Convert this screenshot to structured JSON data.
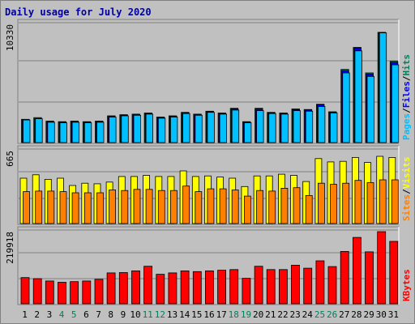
{
  "chart_data": {
    "type": "bar",
    "title": "Daily usage for July 2020",
    "categories": [
      "1",
      "2",
      "3",
      "4",
      "5",
      "6",
      "7",
      "8",
      "9",
      "10",
      "11",
      "12",
      "13",
      "14",
      "15",
      "16",
      "17",
      "18",
      "19",
      "20",
      "21",
      "22",
      "23",
      "24",
      "25",
      "26",
      "27",
      "28",
      "29",
      "30",
      "31"
    ],
    "weekend_days": [
      "4",
      "5",
      "11",
      "12",
      "18",
      "19",
      "25",
      "26"
    ],
    "panels": [
      {
        "id": "hits",
        "max_label": "10330",
        "ylim": [
          0,
          10330
        ],
        "legend": [
          {
            "name": "Pages",
            "color": "#00c0ff"
          },
          {
            "name": "Files",
            "color": "#0000ff"
          },
          {
            "name": "Hits",
            "color": "#00805c"
          }
        ],
        "series": [
          {
            "name": "Hits",
            "values": [
              2000,
              2150,
              1850,
              1800,
              1850,
              1800,
              1850,
              2300,
              2400,
              2450,
              2550,
              2200,
              2300,
              2600,
              2450,
              2700,
              2550,
              2950,
              1800,
              2950,
              2600,
              2550,
              2900,
              2850,
              3300,
              2650,
              6300,
              8200,
              6000,
              9500,
              7000
            ]
          },
          {
            "name": "Files",
            "values": [
              1950,
              2050,
              1800,
              1750,
              1800,
              1750,
              1800,
              2250,
              2350,
              2400,
              2500,
              2150,
              2250,
              2550,
              2400,
              2650,
              2500,
              2900,
              1750,
              2900,
              2550,
              2500,
              2850,
              2800,
              3250,
              2600,
              6200,
              8150,
              5900,
              9450,
              6900
            ]
          },
          {
            "name": "Pages",
            "values": [
              1950,
              2050,
              1750,
              1700,
              1750,
              1700,
              1750,
              2200,
              2300,
              2350,
              2450,
              2100,
              2200,
              2500,
              2350,
              2600,
              2450,
              2800,
              1700,
              2750,
              2500,
              2450,
              2750,
              2700,
              3100,
              2550,
              6000,
              7900,
              5700,
              9450,
              6700
            ]
          }
        ]
      },
      {
        "id": "visits",
        "max_label": "665",
        "ylim": [
          0,
          665
        ],
        "legend": [
          {
            "name": "Sites",
            "color": "#ff8000"
          },
          {
            "name": "Visits",
            "color": "#ffff00"
          }
        ],
        "series": [
          {
            "name": "Visits",
            "values": [
              405,
              435,
              395,
              405,
              340,
              360,
              355,
              370,
              420,
              420,
              430,
              420,
              420,
              470,
              420,
              425,
              415,
              405,
              330,
              425,
              425,
              440,
              430,
              375,
              580,
              550,
              555,
              590,
              545,
              600,
              590
            ]
          },
          {
            "name": "Sites",
            "values": [
              285,
              290,
              290,
              285,
              275,
              275,
              275,
              300,
              295,
              305,
              305,
              295,
              295,
              335,
              285,
              310,
              310,
              300,
              245,
              295,
              290,
              315,
              320,
              250,
              360,
              350,
              360,
              385,
              365,
              390,
              390
            ]
          }
        ]
      },
      {
        "id": "kbytes",
        "max_label": "219918",
        "ylim": [
          0,
          219918
        ],
        "legend": [
          {
            "name": "KBytes",
            "color": "#ff0000"
          }
        ],
        "series": [
          {
            "name": "KBytes",
            "values": [
              78000,
              75000,
              68000,
              64000,
              66000,
              68000,
              73000,
              92000,
              93000,
              98000,
              112000,
              88000,
              92000,
              98000,
              96000,
              98000,
              100000,
              102000,
              76000,
              112000,
              102000,
              102000,
              115000,
              106000,
              128000,
              111000,
              156000,
              198000,
              155000,
              215000,
              186000
            ]
          }
        ]
      }
    ]
  }
}
